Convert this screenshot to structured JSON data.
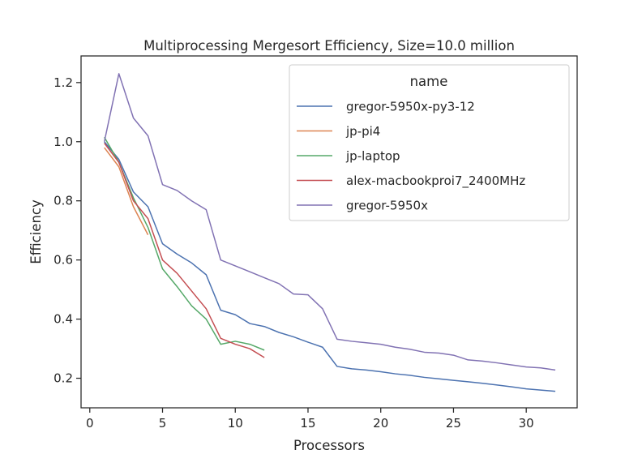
{
  "chart_data": {
    "type": "line",
    "title": "Multiprocessing Mergesort Efficiency, Size=10.0 million",
    "xlabel": "Processors",
    "ylabel": "Efficiency",
    "xlim": [
      -0.6,
      33.5
    ],
    "ylim": [
      0.1,
      1.29
    ],
    "xticks": [
      0,
      5,
      10,
      15,
      20,
      25,
      30
    ],
    "yticks": [
      0.2,
      0.4,
      0.6,
      0.8,
      1.0,
      1.2
    ],
    "xtick_labels": [
      "0",
      "5",
      "10",
      "15",
      "20",
      "25",
      "30"
    ],
    "ytick_labels": [
      "0.2",
      "0.4",
      "0.6",
      "0.8",
      "1.0",
      "1.2"
    ],
    "grid": false,
    "legend": {
      "title": "name",
      "placement": "top-right"
    },
    "series": [
      {
        "name": "gregor-5950x-py3-12",
        "color": "#4c72b0",
        "x": [
          1,
          2,
          3,
          4,
          5,
          6,
          7,
          8,
          9,
          10,
          11,
          12,
          13,
          14,
          15,
          16,
          17,
          18,
          19,
          20,
          21,
          22,
          23,
          24,
          25,
          26,
          27,
          28,
          29,
          30,
          31,
          32
        ],
        "y": [
          1.0,
          0.94,
          0.83,
          0.78,
          0.655,
          0.62,
          0.59,
          0.55,
          0.43,
          0.415,
          0.385,
          0.375,
          0.355,
          0.34,
          0.322,
          0.305,
          0.24,
          0.232,
          0.228,
          0.222,
          0.215,
          0.21,
          0.203,
          0.198,
          0.193,
          0.188,
          0.183,
          0.177,
          0.171,
          0.164,
          0.16,
          0.156
        ]
      },
      {
        "name": "jp-pi4",
        "color": "#dd8452",
        "x": [
          1,
          2,
          3,
          4
        ],
        "y": [
          0.98,
          0.915,
          0.78,
          0.685
        ]
      },
      {
        "name": "jp-laptop",
        "color": "#55a868",
        "x": [
          1,
          2,
          3,
          4,
          5,
          6,
          7,
          8,
          9,
          10,
          11,
          12
        ],
        "y": [
          1.015,
          0.93,
          0.81,
          0.71,
          0.57,
          0.51,
          0.445,
          0.4,
          0.315,
          0.325,
          0.315,
          0.295
        ]
      },
      {
        "name": "alex-macbookproi7_2400MHz",
        "color": "#c44e52",
        "x": [
          1,
          2,
          3,
          4,
          5,
          6,
          7,
          8,
          9,
          10,
          11,
          12
        ],
        "y": [
          0.995,
          0.93,
          0.8,
          0.74,
          0.6,
          0.555,
          0.495,
          0.435,
          0.335,
          0.315,
          0.3,
          0.27
        ]
      },
      {
        "name": "gregor-5950x",
        "color": "#8172b3",
        "x": [
          1,
          2,
          3,
          4,
          5,
          6,
          7,
          8,
          9,
          10,
          11,
          12,
          13,
          14,
          15,
          16,
          17,
          18,
          19,
          20,
          21,
          22,
          23,
          24,
          25,
          26,
          27,
          28,
          29,
          30,
          31,
          32
        ],
        "y": [
          1.0,
          1.23,
          1.08,
          1.02,
          0.855,
          0.835,
          0.8,
          0.77,
          0.6,
          0.58,
          0.56,
          0.54,
          0.52,
          0.485,
          0.482,
          0.435,
          0.332,
          0.325,
          0.32,
          0.315,
          0.305,
          0.298,
          0.288,
          0.285,
          0.278,
          0.262,
          0.258,
          0.252,
          0.245,
          0.238,
          0.235,
          0.228
        ]
      }
    ]
  }
}
